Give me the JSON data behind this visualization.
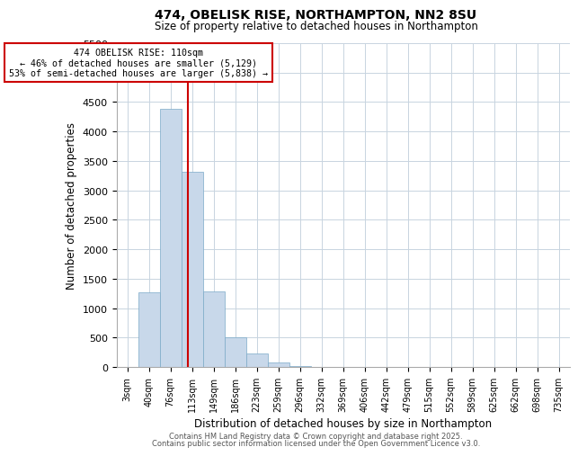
{
  "title": "474, OBELISK RISE, NORTHAMPTON, NN2 8SU",
  "subtitle": "Size of property relative to detached houses in Northampton",
  "xlabel": "Distribution of detached houses by size in Northampton",
  "ylabel": "Number of detached properties",
  "bar_color": "#c8d8ea",
  "bar_edge_color": "#7baac8",
  "grid_color": "#c8d4e0",
  "background_color": "#ffffff",
  "categories": [
    "3sqm",
    "40sqm",
    "76sqm",
    "113sqm",
    "149sqm",
    "186sqm",
    "223sqm",
    "259sqm",
    "296sqm",
    "332sqm",
    "369sqm",
    "406sqm",
    "442sqm",
    "479sqm",
    "515sqm",
    "552sqm",
    "589sqm",
    "625sqm",
    "662sqm",
    "698sqm",
    "735sqm"
  ],
  "values": [
    0,
    1270,
    4380,
    3310,
    1280,
    500,
    230,
    80,
    20,
    5,
    2,
    1,
    0,
    0,
    0,
    0,
    0,
    0,
    0,
    0,
    0
  ],
  "vline_x_idx": 2.82,
  "vline_color": "#cc0000",
  "annotation_text": "474 OBELISK RISE: 110sqm\n← 46% of detached houses are smaller (5,129)\n53% of semi-detached houses are larger (5,838) →",
  "annotation_box_edge_color": "#cc0000",
  "ylim": [
    0,
    5500
  ],
  "yticks": [
    0,
    500,
    1000,
    1500,
    2000,
    2500,
    3000,
    3500,
    4000,
    4500,
    5000,
    5500
  ],
  "footer_line1": "Contains HM Land Registry data © Crown copyright and database right 2025.",
  "footer_line2": "Contains public sector information licensed under the Open Government Licence v3.0."
}
